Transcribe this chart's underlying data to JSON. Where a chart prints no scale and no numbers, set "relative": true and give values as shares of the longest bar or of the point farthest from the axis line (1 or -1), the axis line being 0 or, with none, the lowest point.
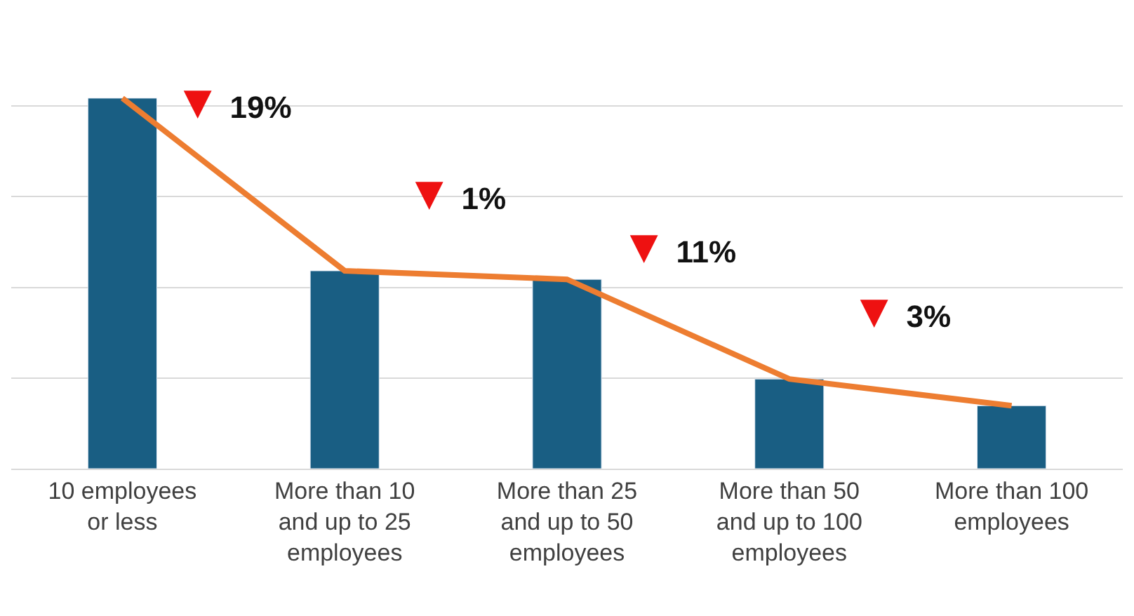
{
  "chart_data": {
    "type": "bar",
    "relative": true,
    "categories": [
      "10 employees\nor less",
      "More than 10\nand up to 25\nemployees",
      "More than 25\nand up to 50\nemployees",
      "More than 50\nand up to 100\nemployees",
      "More than 100\nemployees"
    ],
    "series": [
      {
        "color": "#195e83",
        "values": [
          1,
          0.534,
          0.511,
          0.242,
          0.17
        ]
      },
      {
        "type": "line",
        "color": "#ed7d31",
        "values": [
          1,
          0.534,
          0.511,
          0.242,
          0.17
        ],
        "marker": "none",
        "line_style": "solid"
      }
    ],
    "annotations": [
      "▼ 19%",
      "▼ 1%",
      "▼ 11%",
      "▼ 3%"
    ],
    "grid": "y"
  }
}
